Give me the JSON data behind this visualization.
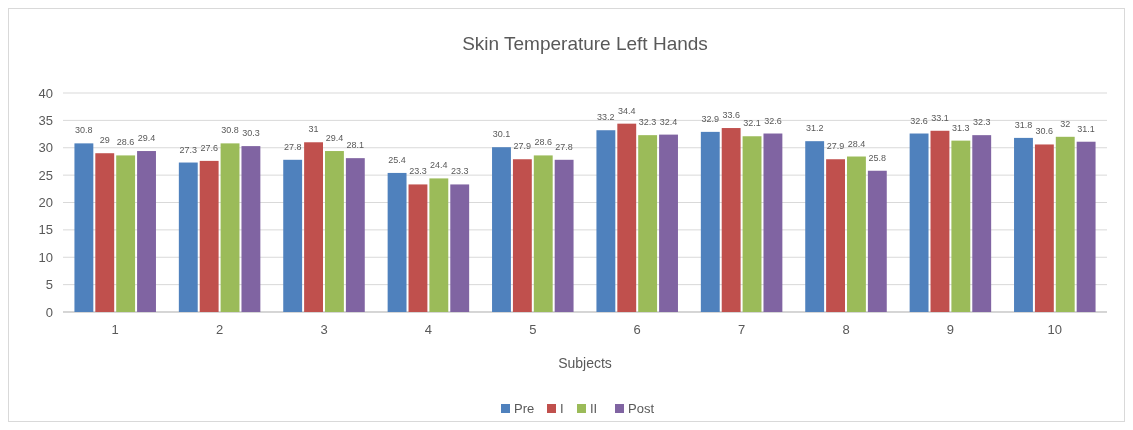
{
  "chart_data": {
    "type": "bar",
    "title": "Skin Temperature  Left Hands",
    "xlabel": "Subjects",
    "categories": [
      "1",
      "2",
      "3",
      "4",
      "5",
      "6",
      "7",
      "8",
      "9",
      "10"
    ],
    "series": [
      {
        "name": "Pre",
        "color": "#4f81bd",
        "values": [
          30.8,
          27.3,
          27.8,
          25.4,
          30.1,
          33.2,
          32.9,
          31.2,
          32.6,
          31.8
        ]
      },
      {
        "name": "I",
        "color": "#c0504d",
        "values": [
          29,
          27.6,
          31,
          23.3,
          27.9,
          34.4,
          33.6,
          27.9,
          33.1,
          30.6
        ]
      },
      {
        "name": "II",
        "color": "#9bbb59",
        "values": [
          28.6,
          30.8,
          29.4,
          24.4,
          28.6,
          32.3,
          32.1,
          28.4,
          31.3,
          32
        ]
      },
      {
        "name": "Post",
        "color": "#8064a2",
        "values": [
          29.4,
          30.3,
          28.1,
          23.3,
          27.8,
          32.4,
          32.6,
          25.8,
          32.3,
          31.1
        ]
      }
    ],
    "ylim": [
      0,
      40
    ],
    "yticks": [
      0,
      5,
      10,
      15,
      20,
      25,
      30,
      35,
      40
    ],
    "grid": "y",
    "legend": "bottom",
    "data_labels": true
  }
}
